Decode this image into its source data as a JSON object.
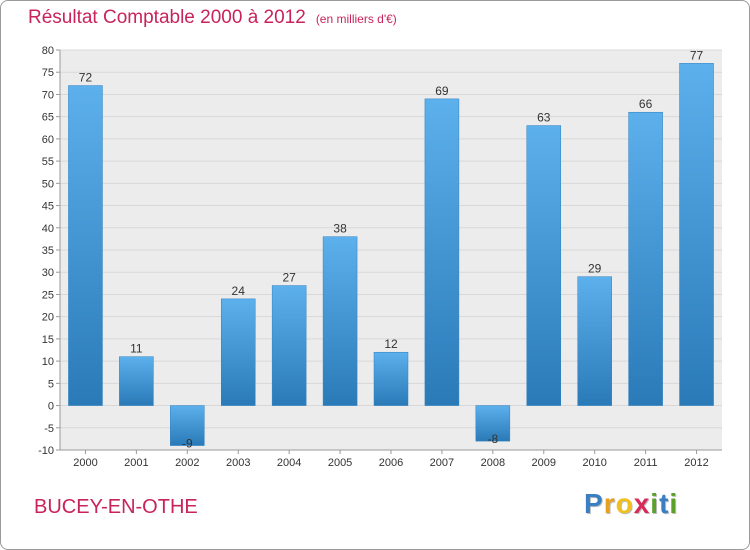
{
  "title": "Résultat Comptable 2000 à 2012",
  "unit": "(en milliers d'€)",
  "commune": "BUCEY-EN-OTHE",
  "logo": {
    "letters": [
      "P",
      "r",
      "o",
      "x",
      "i",
      "t",
      "i"
    ],
    "colors": [
      "#3a7fc4",
      "#e8a020",
      "#f0c020",
      "#d82a5a",
      "#5aa02a",
      "#3a7fc4",
      "#5aa02a"
    ]
  },
  "colors": {
    "title": "#c8245a",
    "bar_top": "#5cb0ec",
    "bar_bottom": "#2a7ab8",
    "grid": "#d8d8d8",
    "plot_bg": "#ececec"
  },
  "chart_data": {
    "type": "bar",
    "title": "Résultat Comptable 2000 à 2012",
    "xlabel": "",
    "ylabel": "",
    "categories": [
      "2000",
      "2001",
      "2002",
      "2003",
      "2004",
      "2005",
      "2006",
      "2007",
      "2008",
      "2009",
      "2010",
      "2011",
      "2012"
    ],
    "values": [
      72,
      11,
      -9,
      24,
      27,
      38,
      12,
      69,
      -8,
      63,
      29,
      66,
      77
    ],
    "ylim": [
      -10,
      80
    ],
    "yticks": [
      -10,
      -5,
      0,
      5,
      10,
      15,
      20,
      25,
      30,
      35,
      40,
      45,
      50,
      55,
      60,
      65,
      70,
      75,
      80
    ],
    "grid": true,
    "legend": "none"
  }
}
